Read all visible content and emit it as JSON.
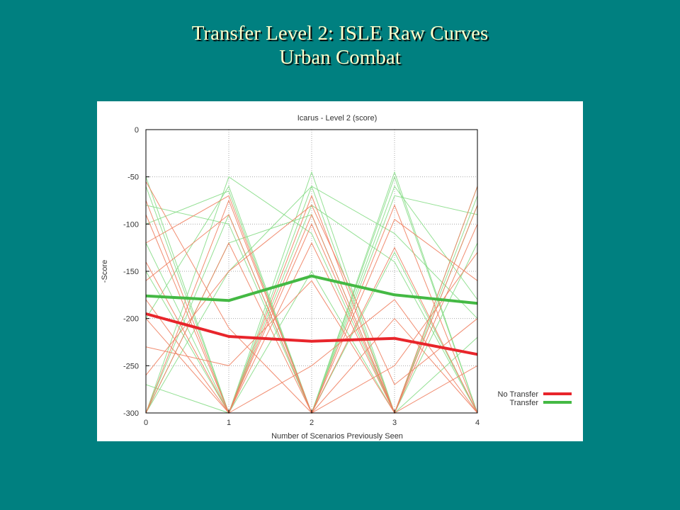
{
  "slide": {
    "title_line1": "Transfer Level 2: ISLE Raw Curves",
    "title_line2": "Urban Combat"
  },
  "chart_data": {
    "type": "line",
    "title": "Icarus - Level 2 (score)",
    "xlabel": "Number of Scenarios Previously Seen",
    "ylabel": "-Score",
    "x": [
      0,
      1,
      2,
      3,
      4
    ],
    "xlim": [
      0,
      4
    ],
    "ylim": [
      -300,
      0
    ],
    "yticks": [
      0,
      -50,
      -100,
      -150,
      -200,
      -250,
      -300
    ],
    "grid": true,
    "legend_position": "bottom-right",
    "colors": {
      "no_transfer": "#e8252b",
      "transfer": "#44b944",
      "no_transfer_thin": "#f08060",
      "transfer_thin": "#88dd88"
    },
    "series": [
      {
        "name": "No Transfer",
        "values": [
          -195,
          -219,
          -224,
          -221,
          -238
        ]
      },
      {
        "name": "Transfer",
        "values": [
          -176,
          -181,
          -155,
          -175,
          -184
        ]
      }
    ],
    "background_runs_no_transfer": [
      [
        -75,
        -300,
        -70,
        -300,
        -60
      ],
      [
        -120,
        -70,
        -300,
        -80,
        -300
      ],
      [
        -160,
        -90,
        -300,
        -125,
        -300
      ],
      [
        -200,
        -300,
        -90,
        -300,
        -80
      ],
      [
        -230,
        -250,
        -160,
        -300,
        -100
      ],
      [
        -300,
        -75,
        -300,
        -200,
        -300
      ],
      [
        -180,
        -300,
        -100,
        -300,
        -250
      ],
      [
        -55,
        -210,
        -300,
        -95,
        -160
      ],
      [
        -90,
        -300,
        -120,
        -300,
        -300
      ],
      [
        -260,
        -150,
        -80,
        -270,
        -200
      ],
      [
        -140,
        -300,
        -250,
        -180,
        -300
      ],
      [
        -300,
        -120,
        -300,
        -250,
        -130
      ]
    ],
    "background_runs_transfer": [
      [
        -50,
        -300,
        -45,
        -300,
        -80
      ],
      [
        -100,
        -65,
        -300,
        -45,
        -300
      ],
      [
        -300,
        -50,
        -110,
        -300,
        -60
      ],
      [
        -80,
        -100,
        -300,
        -50,
        -300
      ],
      [
        -60,
        -300,
        -60,
        -110,
        -200
      ],
      [
        -300,
        -120,
        -90,
        -300,
        -120
      ],
      [
        -150,
        -300,
        -300,
        -70,
        -90
      ],
      [
        -200,
        -60,
        -300,
        -130,
        -300
      ],
      [
        -300,
        -150,
        -60,
        -300,
        -220
      ],
      [
        -120,
        -300,
        -80,
        -140,
        -300
      ],
      [
        -300,
        -90,
        -300,
        -60,
        -180
      ],
      [
        -270,
        -300,
        -150,
        -300,
        -70
      ]
    ]
  }
}
